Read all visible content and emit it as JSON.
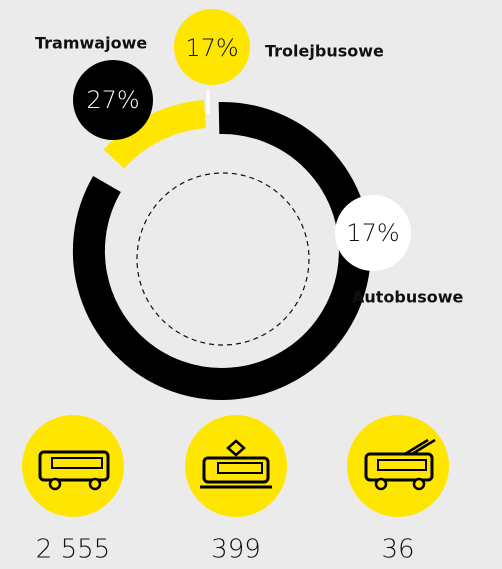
{
  "segments": [
    {
      "label": "Tramwajowe",
      "percent": "27%"
    },
    {
      "label": "Trolejbusowe",
      "percent": "17%"
    },
    {
      "label": "Autobusowe",
      "percent": "17%"
    }
  ],
  "vehicles": [
    {
      "count": "2 555"
    },
    {
      "count": "399"
    },
    {
      "count": "36"
    }
  ]
}
